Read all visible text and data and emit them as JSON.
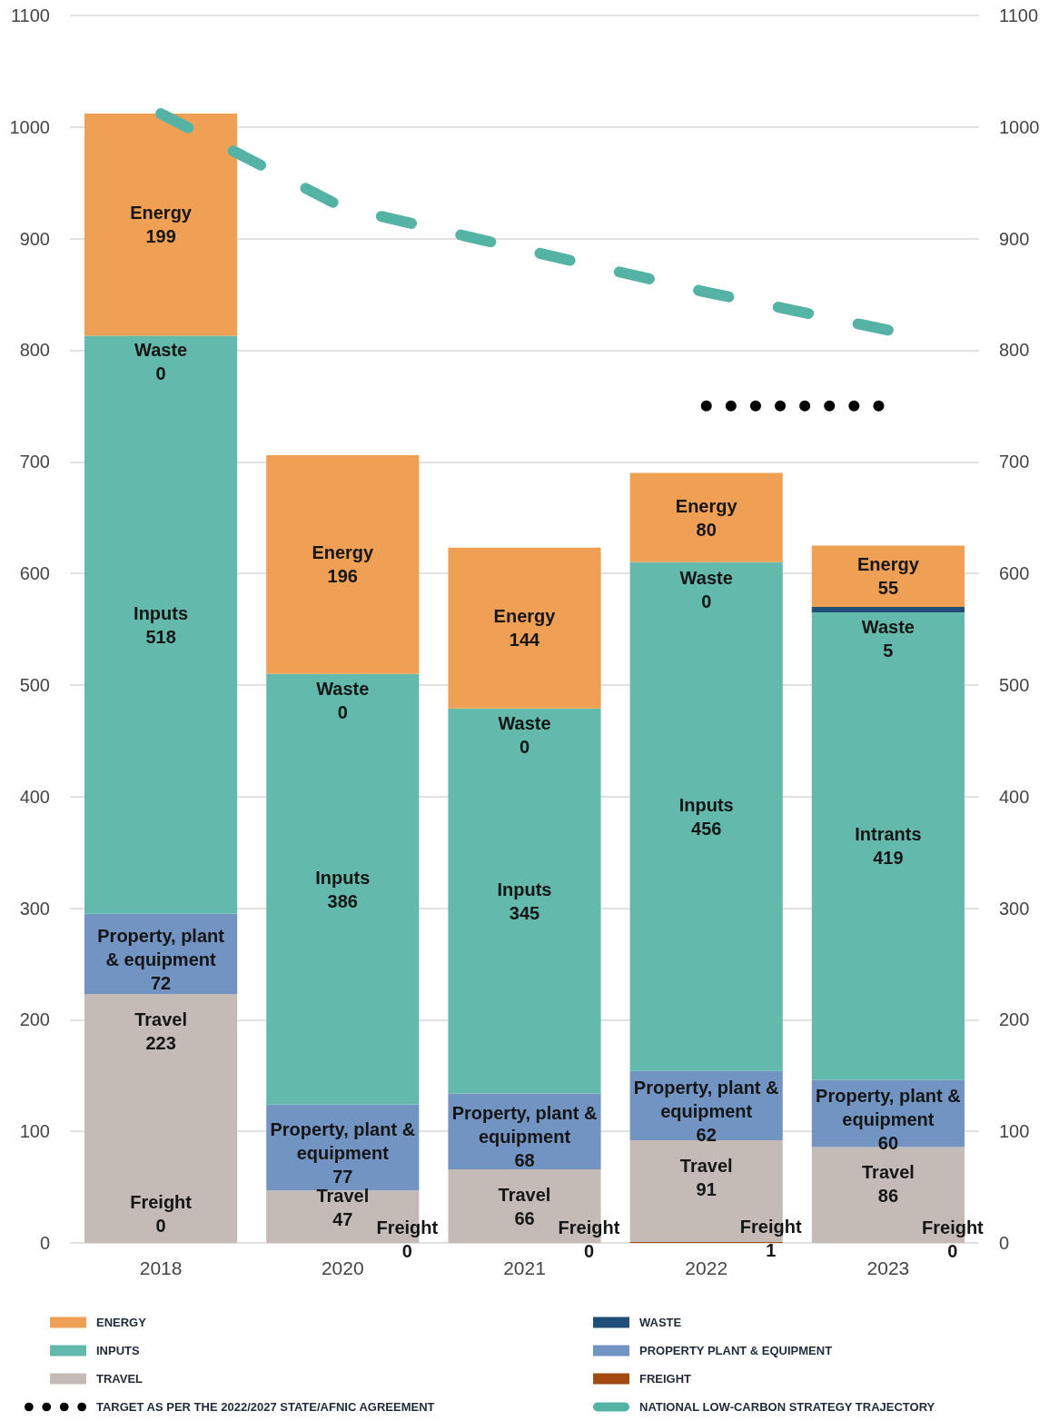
{
  "chart_data": {
    "type": "bar",
    "stacked": true,
    "categories": [
      "2018",
      "2020",
      "2021",
      "2022",
      "2023"
    ],
    "ylim": [
      0,
      1100
    ],
    "yticks": [
      0,
      100,
      200,
      300,
      400,
      500,
      600,
      700,
      800,
      900,
      1000,
      1100
    ],
    "y2lim": [
      0,
      1100
    ],
    "y2ticks": [
      0,
      100,
      200,
      300,
      400,
      500,
      600,
      700,
      800,
      900,
      1000,
      1100
    ],
    "grid": "y",
    "legend": "bottom",
    "series": [
      {
        "name": "FREIGHT",
        "color": "#a24a12",
        "values": [
          0,
          0,
          0,
          1,
          0
        ],
        "value_labels": [
          null,
          null,
          null,
          "Freight\n1",
          null
        ]
      },
      {
        "name": "TRAVEL",
        "color": "#c4bbb6",
        "values": [
          223,
          47,
          66,
          91,
          86
        ],
        "value_labels": [
          "Travel\n223",
          "Travel\n47",
          "Travel\n66",
          "Travel\n91",
          "Travel\n86"
        ]
      },
      {
        "name": "PROPERTY PLANT & EQUIPMENT",
        "color": "#7294c3",
        "values": [
          72,
          77,
          68,
          62,
          60
        ],
        "value_labels": [
          "Property, plant\n& equipment\n72",
          "Property, plant &\nequipment\n77",
          "Property, plant &\nequipment\n68",
          "Property, plant &\nequipment\n62",
          "Property, plant &\nequipment\n60"
        ]
      },
      {
        "name": "INPUTS",
        "color": "#64b9ad",
        "values": [
          518,
          386,
          345,
          456,
          419
        ],
        "value_labels": [
          "Inputs\n518",
          "Inputs\n386",
          "Inputs\n345",
          "Inputs\n456",
          "Intrants\n419"
        ]
      },
      {
        "name": "WASTE",
        "color": "#1f4e79",
        "values": [
          0,
          0,
          0,
          0,
          5
        ],
        "value_labels": [
          null,
          null,
          null,
          null,
          "Waste\n5"
        ]
      },
      {
        "name": "ENERGY",
        "color": "#f0a055",
        "values": [
          199,
          196,
          144,
          80,
          55
        ],
        "value_labels": [
          "Energy\n199",
          "Energy\n196",
          "Energy\n144",
          "Energy\n80",
          "Energy\n55"
        ]
      },
      {
        "name": "TARGET AS PER THE 2022/2027 STATE/AFNIC AGREEMENT",
        "type": "line",
        "color": "#000000",
        "values": [
          null,
          null,
          null,
          750,
          750
        ],
        "line_style": "dotted"
      },
      {
        "name": "NATIONAL LOW-CARBON STRATEGY TRAJECTORY",
        "type": "line",
        "color": "#55b3a6",
        "values": [
          1012,
          928,
          890,
          852,
          818
        ],
        "line_style": "dashed"
      }
    ],
    "annotations": [
      {
        "text": "Waste\n0",
        "x": "2018",
        "y": 813
      },
      {
        "text": "Waste\n0",
        "x": "2020",
        "y": 510
      },
      {
        "text": "Waste\n0",
        "x": "2021",
        "y": 479
      },
      {
        "text": "Waste\n0",
        "x": "2022",
        "y": 609
      },
      {
        "text": "Freight\n0",
        "x": "2018",
        "y": 0
      },
      {
        "text": "Freight\n0",
        "x": "2020",
        "y": 0
      },
      {
        "text": "Freight\n0",
        "x": "2021",
        "y": 0
      },
      {
        "text": "Freight\n0",
        "x": "2023",
        "y": 0
      }
    ]
  }
}
